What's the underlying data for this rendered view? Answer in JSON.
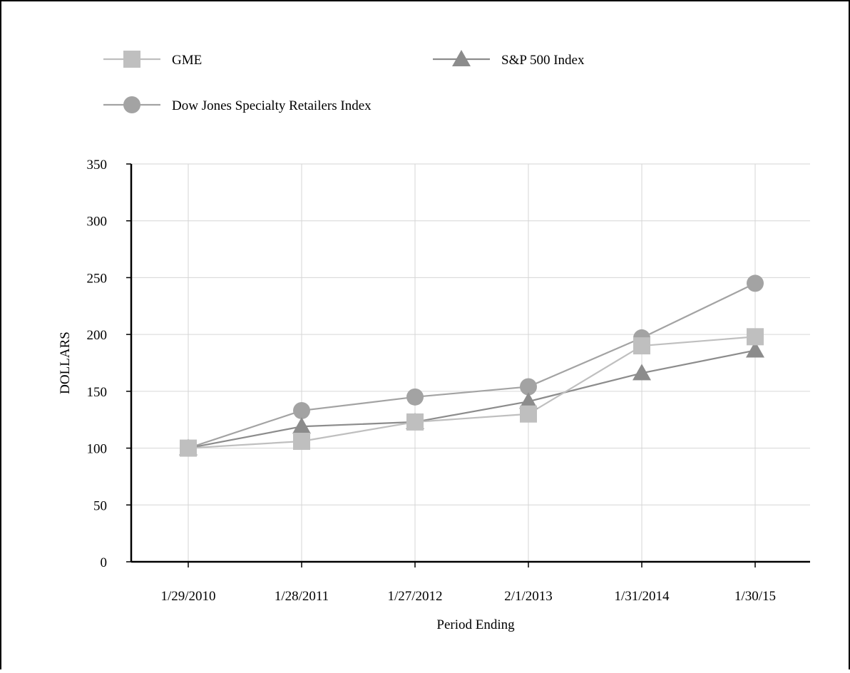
{
  "chart_data": {
    "type": "line",
    "title": "",
    "xlabel": "Period Ending",
    "ylabel": "DOLLARS",
    "categories": [
      "1/29/2010",
      "1/28/2011",
      "1/27/2012",
      "2/1/2013",
      "1/31/2014",
      "1/30/15"
    ],
    "ylim": [
      0,
      350
    ],
    "yticks": [
      0,
      50,
      100,
      150,
      200,
      250,
      300,
      350
    ],
    "grid": true,
    "legend_position": "top",
    "series": [
      {
        "name": "GME",
        "marker": "square",
        "color": "#bfbfbf",
        "values": [
          100,
          106,
          123,
          130,
          190,
          198
        ]
      },
      {
        "name": "S&P 500 Index",
        "marker": "triangle",
        "color": "#8c8c8c",
        "values": [
          100,
          119,
          123,
          141,
          166,
          186
        ]
      },
      {
        "name": "Dow Jones Specialty Retailers Index",
        "marker": "circle",
        "color": "#a3a3a3",
        "values": [
          100,
          133,
          145,
          154,
          197,
          245
        ]
      }
    ]
  }
}
